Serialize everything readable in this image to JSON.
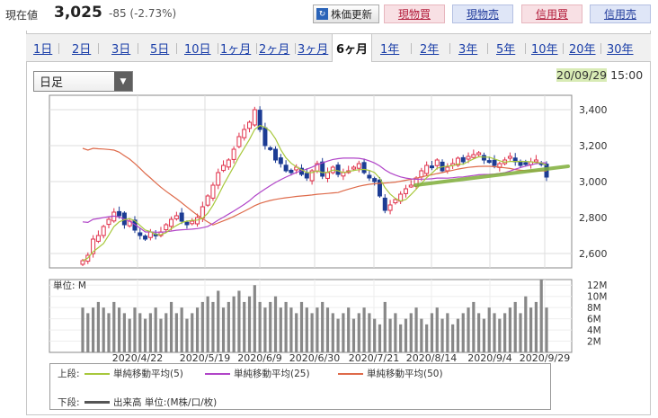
{
  "header": {
    "price_label": "現在値",
    "price": "3,025",
    "change": "-85 (-2.73%)",
    "update_label": "株価更新",
    "buttons": [
      {
        "label": "現物買",
        "kind": "buy"
      },
      {
        "label": "現物売",
        "kind": "sell"
      },
      {
        "label": "信用買",
        "kind": "buy"
      },
      {
        "label": "信用売",
        "kind": "sell"
      }
    ]
  },
  "tabs": [
    "1日",
    "2日",
    "3日",
    "5日",
    "10日",
    "1ヶ月",
    "2ヶ月",
    "3ヶ月",
    "6ヶ月",
    "1年",
    "2年",
    "3年",
    "5年",
    "10年",
    "20年",
    "30年"
  ],
  "active_tab": "6ヶ月",
  "period_select": "日足",
  "datetime": {
    "date": "20/09/29",
    "time": "15:00"
  },
  "colors": {
    "up": "#e0304a",
    "down": "#1c3c94",
    "ma5": "#a8c83c",
    "ma25": "#b145c8",
    "ma50": "#de6a4a",
    "volume": "#888888",
    "trend": "#7fae3a"
  },
  "chart_data": [
    {
      "type": "candlestick",
      "name": "price",
      "ylim": [
        2520,
        3480
      ],
      "y_ticks": [
        "3,400",
        "3,200",
        "3,000",
        "2,800",
        "2,600"
      ],
      "y_tick_values": [
        3400,
        3200,
        3000,
        2800,
        2600
      ],
      "close_approx": [
        2560,
        2590,
        2680,
        2700,
        2750,
        2790,
        2830,
        2810,
        2760,
        2780,
        2730,
        2700,
        2680,
        2720,
        2700,
        2720,
        2760,
        2790,
        2810,
        2780,
        2760,
        2780,
        2800,
        2860,
        2920,
        2980,
        3050,
        3090,
        3120,
        3180,
        3250,
        3290,
        3330,
        3400,
        3290,
        3200,
        3180,
        3120,
        3100,
        3060,
        3050,
        3080,
        3040,
        3020,
        3060,
        3100,
        3030,
        3050,
        3080,
        3040,
        3050,
        3060,
        3080,
        3100,
        3050,
        3020,
        3000,
        2920,
        2840,
        2870,
        2900,
        2930,
        2960,
        2980,
        3020,
        3060,
        3090,
        3080,
        3120,
        3060,
        3080,
        3100,
        3130,
        3110,
        3140,
        3150,
        3160,
        3120,
        3110,
        3090,
        3100,
        3120,
        3140,
        3110,
        3090,
        3100,
        3110,
        3120,
        3100,
        3025
      ],
      "ma5_visible": true,
      "ma25_visible": true,
      "ma50_visible": true
    },
    {
      "type": "bar",
      "name": "volume",
      "ylim": [
        0,
        13
      ],
      "y_ticks": [
        "12M",
        "10M",
        "8M",
        "6M",
        "4M",
        "2M"
      ],
      "y_tick_values": [
        12,
        10,
        8,
        6,
        4,
        2
      ],
      "x_ticks": [
        "2020/4/22",
        "2020/5/19",
        "2020/6/9",
        "2020/6/30",
        "2020/7/21",
        "2020/8/14",
        "2020/9/4",
        "2020/9/29"
      ],
      "values_approx": [
        8,
        7,
        8,
        9,
        8,
        7,
        9,
        8,
        7,
        6,
        8,
        7,
        6,
        7,
        8,
        6,
        7,
        9,
        7,
        8,
        6,
        7,
        8,
        9,
        10,
        9,
        11,
        8,
        9,
        10,
        11,
        9,
        10,
        12,
        9,
        8,
        9,
        10,
        8,
        9,
        8,
        7,
        9,
        8,
        7,
        8,
        9,
        8,
        7,
        6,
        7,
        8,
        6,
        7,
        8,
        7,
        6,
        5,
        9,
        6,
        7,
        5,
        6,
        7,
        8,
        6,
        5,
        7,
        8,
        6,
        7,
        5,
        6,
        7,
        8,
        9,
        7,
        6,
        8,
        7,
        6,
        7,
        8,
        9,
        7,
        10,
        8,
        9,
        13,
        8
      ],
      "unit_label": "単位: M"
    }
  ],
  "legend": {
    "upper_label": "上段:",
    "lower_label": "下段:",
    "items": [
      {
        "label": "単純移動平均(5)",
        "color": "#a8c83c"
      },
      {
        "label": "単純移動平均(25)",
        "color": "#b145c8"
      },
      {
        "label": "単純移動平均(50)",
        "color": "#de6a4a"
      }
    ],
    "volume_label": "出来高 単位:(M株/口/枚)"
  }
}
